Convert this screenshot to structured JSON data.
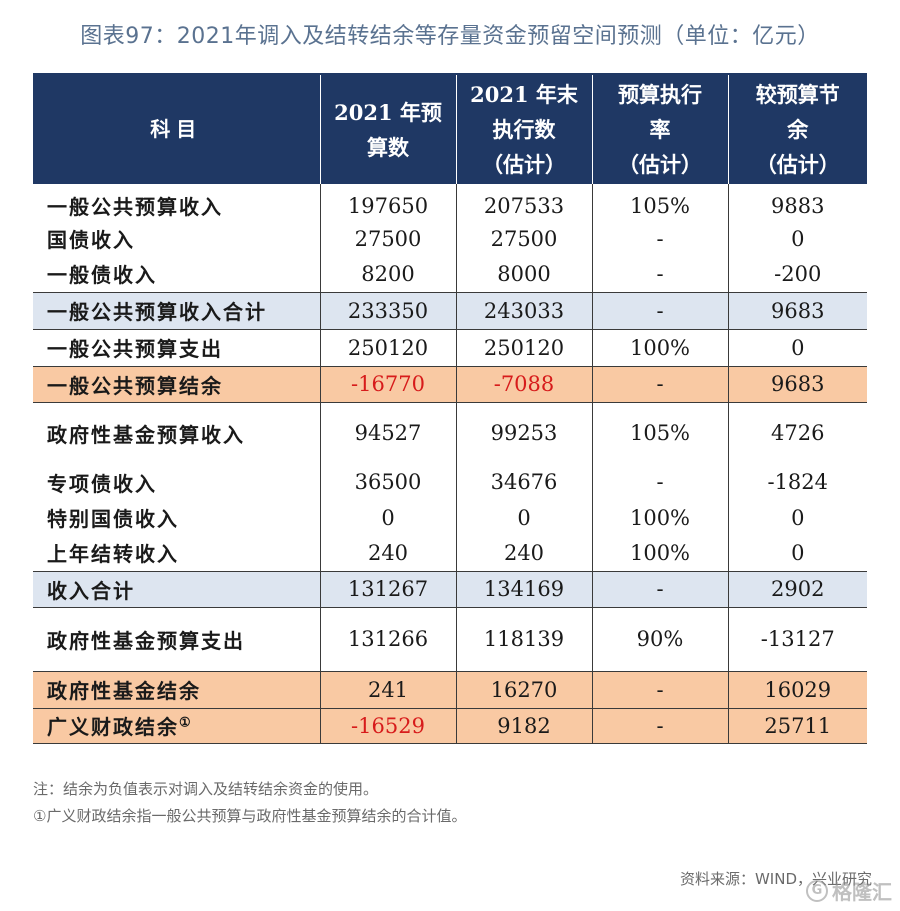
{
  "title": "图表97：2021年调入及结转结余等存量资金预留空间预测（单位：亿元）",
  "header": {
    "col0": "科目",
    "col1": [
      "2021 年预",
      "算数"
    ],
    "col2": [
      "2021 年末",
      "执行数",
      "（估计）"
    ],
    "col3": [
      "预算执行",
      "率",
      "（估计）"
    ],
    "col4": [
      "较预算节",
      "余",
      "（估计）"
    ]
  },
  "rows": [
    {
      "label": "一般公共预算收入",
      "budget": "197650",
      "actual": "207533",
      "rate": "105%",
      "saving": "9883"
    },
    {
      "label": "国债收入",
      "budget": "27500",
      "actual": "27500",
      "rate": "-",
      "saving": "0"
    },
    {
      "label": "一般债收入",
      "budget": "8200",
      "actual": "8000",
      "rate": "-",
      "saving": "-200"
    },
    {
      "label": "一般公共预算收入合计",
      "budget": "233350",
      "actual": "243033",
      "rate": "-",
      "saving": "9683"
    },
    {
      "label": "一般公共预算支出",
      "budget": "250120",
      "actual": "250120",
      "rate": "100%",
      "saving": "0"
    },
    {
      "label": "一般公共预算结余",
      "budget": "-16770",
      "actual": "-7088",
      "rate": "-",
      "saving": "9683"
    },
    {
      "label": "政府性基金预算收入",
      "budget": "94527",
      "actual": "99253",
      "rate": "105%",
      "saving": "4726"
    },
    {
      "label": "专项债收入",
      "budget": "36500",
      "actual": "34676",
      "rate": "-",
      "saving": "-1824"
    },
    {
      "label": "特别国债收入",
      "budget": "0",
      "actual": "0",
      "rate": "100%",
      "saving": "0"
    },
    {
      "label": "上年结转收入",
      "budget": "240",
      "actual": "240",
      "rate": "100%",
      "saving": "0"
    },
    {
      "label": "收入合计",
      "budget": "131267",
      "actual": "134169",
      "rate": "-",
      "saving": "2902"
    },
    {
      "label": "政府性基金预算支出",
      "budget": "131266",
      "actual": "118139",
      "rate": "90%",
      "saving": "-13127"
    },
    {
      "label": "政府性基金结余",
      "budget": "241",
      "actual": "16270",
      "rate": "-",
      "saving": "16029"
    },
    {
      "label": "广义财政结余",
      "label_sup": "①",
      "budget": "-16529",
      "actual": "9182",
      "rate": "-",
      "saving": "25711"
    }
  ],
  "notes": [
    "注：结余为负值表示对调入及结转结余资金的使用。",
    "①广义财政结余指一般公共预算与政府性基金预算结余的合计值。"
  ],
  "source": "资料来源：WIND，兴业研究",
  "watermark": "格隆汇",
  "colors": {
    "header_bg": "#1f3864",
    "blue_row": "#dde5f0",
    "orange_row": "#f9c9a3",
    "negative": "#d71b1b",
    "title": "#5a7290"
  }
}
